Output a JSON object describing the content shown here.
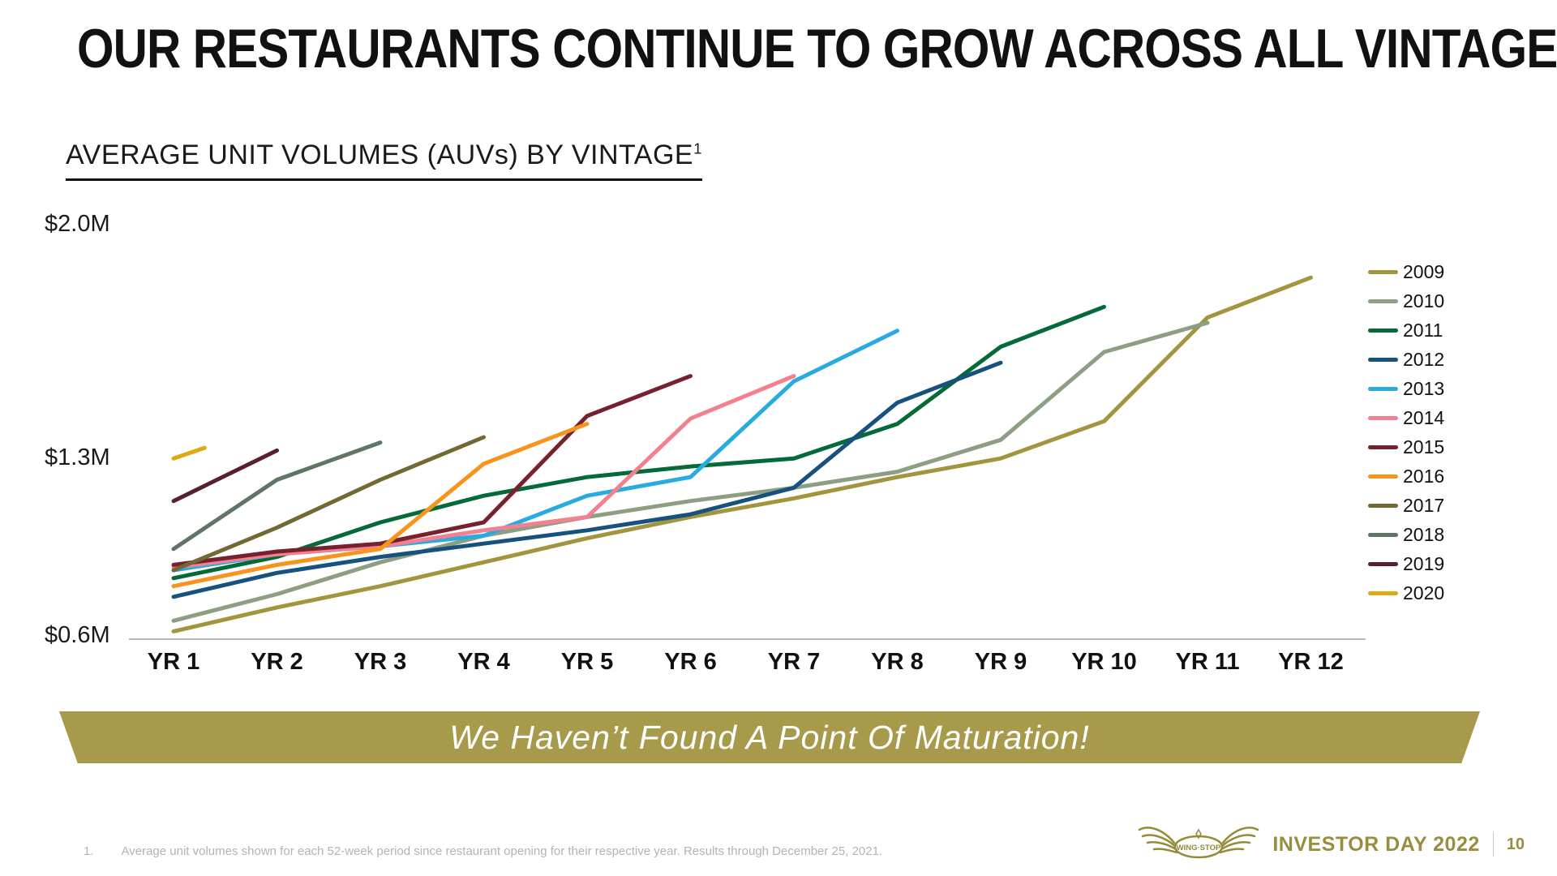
{
  "slide": {
    "title": "OUR RESTAURANTS CONTINUE TO GROW ACROSS ALL VINTAGES",
    "subtitle": "AVERAGE UNIT VOLUMES (AUVs) BY VINTAGE",
    "subtitle_superscript": "1",
    "banner_text": "We Haven’t Found A Point Of Maturation!",
    "footnote_number": "1.",
    "footnote_text": "Average unit volumes shown for each 52-week period since restaurant opening for their respective year. Results through December 25, 2021.",
    "footer": {
      "logo_text": "WING·STOP",
      "brand_text": "INVESTOR DAY 2022",
      "page_number": "10"
    },
    "colors": {
      "banner_bg": "#a79b4b",
      "brand_olive": "#998e3e",
      "footnote_gray": "#b3b3b3",
      "axis_line": "#b9b9b9"
    }
  },
  "chart_data": {
    "type": "line",
    "title": "AVERAGE UNIT VOLUMES (AUVs) BY VINTAGE",
    "unit": "$M",
    "x_categories": [
      "YR 1",
      "YR 2",
      "YR 3",
      "YR 4",
      "YR 5",
      "YR 6",
      "YR 7",
      "YR 8",
      "YR 9",
      "YR 10",
      "YR 11",
      "YR 12"
    ],
    "y_tick_labels": [
      "$2.0M",
      "$1.3M",
      "$0.6M"
    ],
    "ylim": [
      0.6,
      2.05
    ],
    "grid": false,
    "legend_position": "right",
    "series": [
      {
        "name": "2009",
        "color": "#a3953e",
        "x": [
          1,
          2,
          3,
          4,
          5,
          6,
          7,
          8,
          9,
          10,
          11,
          12
        ],
        "values": [
          0.62,
          0.71,
          0.79,
          0.88,
          0.97,
          1.05,
          1.12,
          1.2,
          1.27,
          1.41,
          1.8,
          1.95
        ]
      },
      {
        "name": "2010",
        "color": "#8d9f82",
        "x": [
          1,
          2,
          3,
          4,
          5,
          6,
          7,
          8,
          9,
          10,
          11
        ],
        "values": [
          0.66,
          0.76,
          0.88,
          0.98,
          1.05,
          1.11,
          1.16,
          1.22,
          1.34,
          1.67,
          1.78
        ]
      },
      {
        "name": "2011",
        "color": "#046a38",
        "x": [
          1,
          2,
          3,
          4,
          5,
          6,
          7,
          8,
          9,
          10
        ],
        "values": [
          0.82,
          0.9,
          1.03,
          1.13,
          1.2,
          1.24,
          1.27,
          1.4,
          1.69,
          1.84
        ]
      },
      {
        "name": "2012",
        "color": "#17527e",
        "x": [
          1,
          2,
          3,
          4,
          5,
          6,
          7,
          8,
          9
        ],
        "values": [
          0.75,
          0.84,
          0.9,
          0.95,
          1.0,
          1.06,
          1.16,
          1.48,
          1.63
        ]
      },
      {
        "name": "2013",
        "color": "#29abe2",
        "x": [
          1,
          2,
          3,
          4,
          5,
          6,
          7,
          8
        ],
        "values": [
          0.85,
          0.91,
          0.94,
          0.98,
          1.13,
          1.2,
          1.56,
          1.75
        ]
      },
      {
        "name": "2014",
        "color": "#f2808f",
        "x": [
          1,
          2,
          3,
          4,
          5,
          6,
          7
        ],
        "values": [
          0.86,
          0.91,
          0.94,
          1.0,
          1.05,
          1.42,
          1.58
        ]
      },
      {
        "name": "2015",
        "color": "#77202e",
        "x": [
          1,
          2,
          3,
          4,
          5,
          6
        ],
        "values": [
          0.87,
          0.92,
          0.95,
          1.03,
          1.43,
          1.58
        ]
      },
      {
        "name": "2016",
        "color": "#f7941e",
        "x": [
          1,
          2,
          3,
          4,
          5
        ],
        "values": [
          0.79,
          0.87,
          0.93,
          1.25,
          1.4
        ]
      },
      {
        "name": "2017",
        "color": "#716833",
        "x": [
          1,
          2,
          3,
          4
        ],
        "values": [
          0.85,
          1.01,
          1.19,
          1.35
        ]
      },
      {
        "name": "2018",
        "color": "#5f7565",
        "x": [
          1,
          2,
          3
        ],
        "values": [
          0.93,
          1.19,
          1.33
        ]
      },
      {
        "name": "2019",
        "color": "#5a1f2d",
        "x": [
          1,
          2
        ],
        "values": [
          1.11,
          1.3
        ]
      },
      {
        "name": "2020",
        "color": "#e0a911",
        "x": [
          1,
          1.3
        ],
        "values": [
          1.27,
          1.31
        ]
      }
    ]
  }
}
